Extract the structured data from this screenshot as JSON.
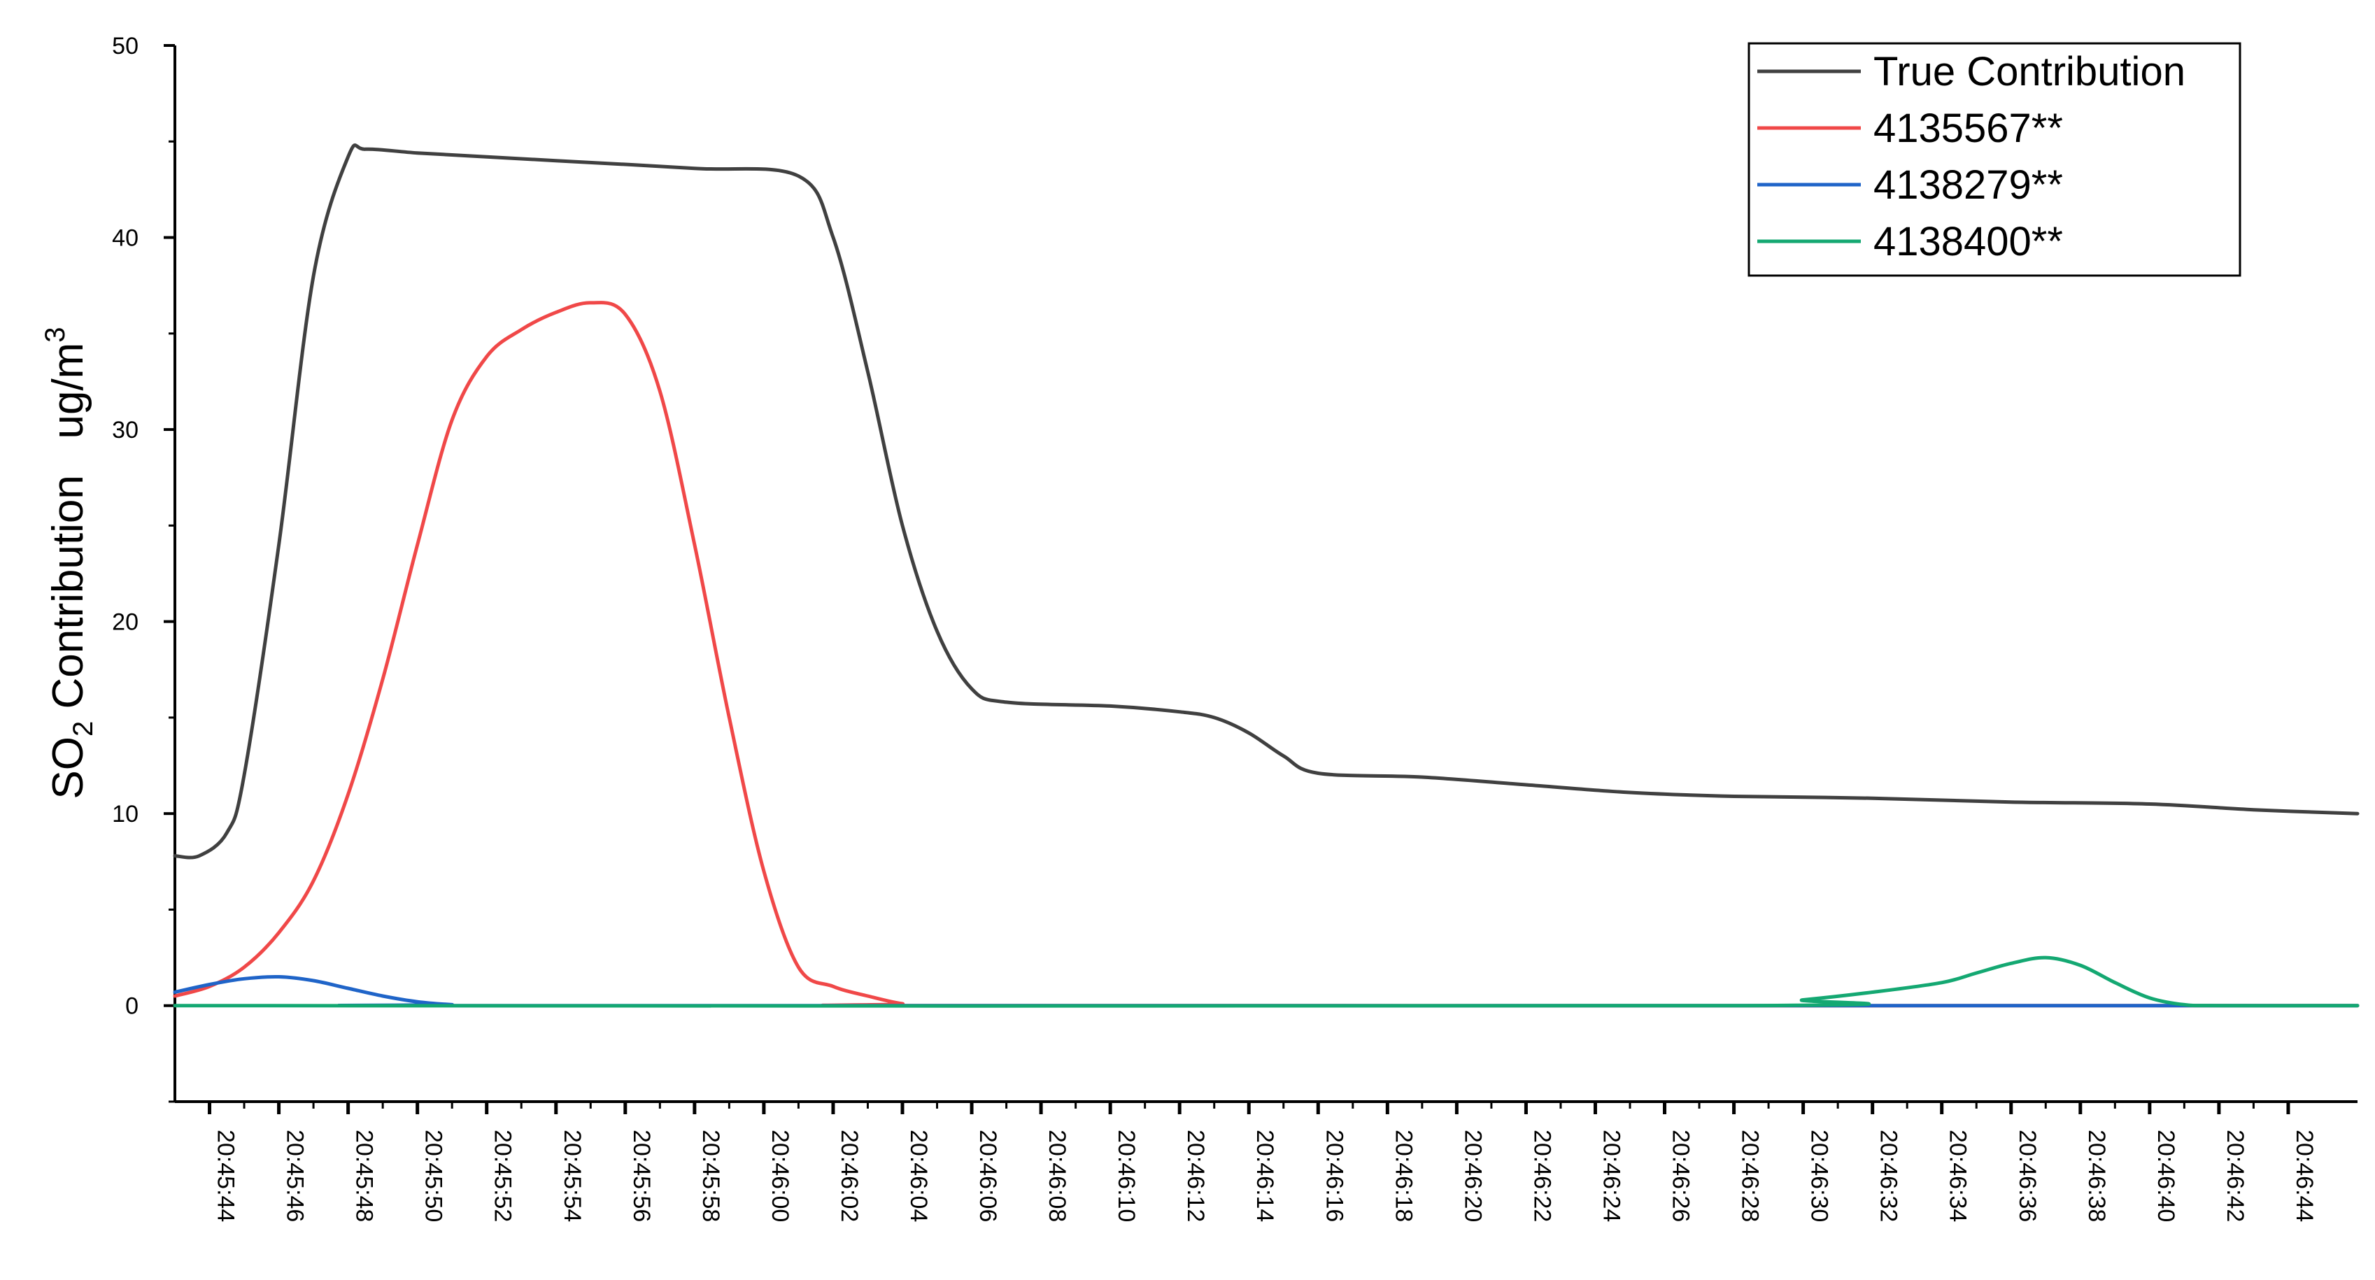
{
  "chart_data": {
    "type": "line",
    "title": "",
    "xlabel": "",
    "ylabel_main": "SO",
    "ylabel_sub": "2",
    "ylabel_rest": " Contribution   ug/m",
    "ylabel_sup": "3",
    "ylim": [
      -5,
      50
    ],
    "yticks": [
      0,
      10,
      20,
      30,
      40,
      50
    ],
    "ytick_labels": [
      "0",
      "10",
      "20",
      "30",
      "40",
      "50"
    ],
    "xticks": [
      "20:45:44",
      "20:45:46",
      "20:45:48",
      "20:45:50",
      "20:45:52",
      "20:45:54",
      "20:45:56",
      "20:45:58",
      "20:46:00",
      "20:46:02",
      "20:46:04",
      "20:46:06",
      "20:46:08",
      "20:46:10",
      "20:46:12",
      "20:46:14",
      "20:46:16",
      "20:46:18",
      "20:46:20",
      "20:46:22",
      "20:46:24",
      "20:46:26",
      "20:46:28",
      "20:46:30",
      "20:46:32",
      "20:46:34",
      "20:46:36",
      "20:46:38",
      "20:46:40",
      "20:46:42",
      "20:46:44"
    ],
    "xlim_sec": [
      -1,
      62
    ],
    "grid": false,
    "legend": "top-right",
    "series": [
      {
        "name": "True Contribution",
        "color": "#404040",
        "points": [
          [
            -1,
            7.8
          ],
          [
            -0.3,
            7.8
          ],
          [
            0.5,
            9
          ],
          [
            1,
            12
          ],
          [
            2,
            24
          ],
          [
            3,
            38
          ],
          [
            4,
            44.2
          ],
          [
            4.5,
            44.6
          ],
          [
            6,
            44.4
          ],
          [
            8,
            44.2
          ],
          [
            10,
            44.0
          ],
          [
            14,
            43.6
          ],
          [
            17,
            43.2
          ],
          [
            18,
            40
          ],
          [
            19,
            33
          ],
          [
            20,
            25
          ],
          [
            21,
            19.5
          ],
          [
            22,
            16.5
          ],
          [
            23,
            15.8
          ],
          [
            26,
            15.6
          ],
          [
            28,
            15.3
          ],
          [
            29,
            15.0
          ],
          [
            30,
            14.2
          ],
          [
            31,
            13.0
          ],
          [
            32,
            12.1
          ],
          [
            35,
            11.9
          ],
          [
            38,
            11.5
          ],
          [
            41,
            11.1
          ],
          [
            44,
            10.9
          ],
          [
            48,
            10.8
          ],
          [
            52,
            10.6
          ],
          [
            56,
            10.5
          ],
          [
            59,
            10.2
          ],
          [
            62,
            10.0
          ]
        ]
      },
      {
        "name": "4135567**",
        "color": "#f04848",
        "points": [
          [
            -1,
            0.5
          ],
          [
            0,
            1
          ],
          [
            1,
            2
          ],
          [
            2,
            3.8
          ],
          [
            3,
            6.5
          ],
          [
            4,
            11
          ],
          [
            5,
            17
          ],
          [
            6,
            24
          ],
          [
            7,
            30.5
          ],
          [
            8,
            33.8
          ],
          [
            9,
            35.2
          ],
          [
            10,
            36.1
          ],
          [
            11,
            36.6
          ],
          [
            12,
            36.0
          ],
          [
            13,
            32
          ],
          [
            14,
            24
          ],
          [
            15,
            15
          ],
          [
            16,
            7
          ],
          [
            17,
            2
          ],
          [
            18,
            1
          ],
          [
            19,
            0.5
          ],
          [
            20,
            0.1
          ],
          [
            21,
            0
          ],
          [
            62,
            0
          ]
        ]
      },
      {
        "name": "4138279**",
        "color": "#1f64c8",
        "points": [
          [
            -1,
            0.7
          ],
          [
            0,
            1.1
          ],
          [
            1,
            1.4
          ],
          [
            2,
            1.5
          ],
          [
            3,
            1.3
          ],
          [
            4,
            0.9
          ],
          [
            5,
            0.5
          ],
          [
            6,
            0.2
          ],
          [
            7,
            0.05
          ],
          [
            8,
            0
          ],
          [
            62,
            0
          ]
        ]
      },
      {
        "name": "4138400**",
        "color": "#14a872",
        "points": [
          [
            -1,
            0
          ],
          [
            44,
            0
          ],
          [
            46,
            0.3
          ],
          [
            48,
            0.7
          ],
          [
            50,
            1.2
          ],
          [
            51,
            1.7
          ],
          [
            52,
            2.2
          ],
          [
            53,
            2.5
          ],
          [
            54,
            2.1
          ],
          [
            55,
            1.2
          ],
          [
            56,
            0.4
          ],
          [
            57,
            0.05
          ],
          [
            58,
            0
          ],
          [
            62,
            0
          ]
        ]
      }
    ]
  }
}
